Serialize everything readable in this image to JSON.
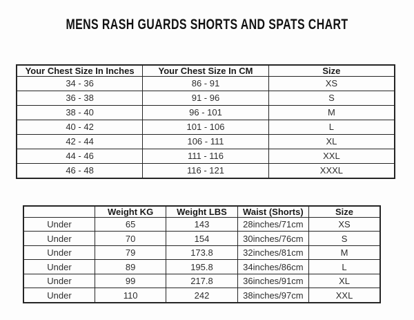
{
  "title": "MENS RASH GUARDS SHORTS AND SPATS CHART",
  "colors": {
    "background": "#fdfdfd",
    "border": "#242424",
    "header_text": "#1a1a1a",
    "cell_text": "#2e2e2e",
    "title_text": "#121212"
  },
  "chest_table": {
    "headers": [
      "Your Chest Size In Inches",
      "Your Chest Size In CM",
      "Size"
    ],
    "rows": [
      [
        "34 - 36",
        "86 - 91",
        "XS"
      ],
      [
        "36 - 38",
        "91 - 96",
        "S"
      ],
      [
        "38 - 40",
        "96 - 101",
        "M"
      ],
      [
        "40 - 42",
        "101 - 106",
        "L"
      ],
      [
        "42 - 44",
        "106 - 111",
        "XL"
      ],
      [
        "44 - 46",
        "111 - 116",
        "XXL"
      ],
      [
        "46 - 48",
        "116 - 121",
        "XXXL"
      ]
    ]
  },
  "weight_table": {
    "headers": [
      "",
      "Weight KG",
      "Weight LBS",
      "Waist (Shorts)",
      "Size"
    ],
    "rows": [
      [
        "Under",
        "65",
        "143",
        "28inches/71cm",
        "XS"
      ],
      [
        "Under",
        "70",
        "154",
        "30inches/76cm",
        "S"
      ],
      [
        "Under",
        "79",
        "173.8",
        "32inches/81cm",
        "M"
      ],
      [
        "Under",
        "89",
        "195.8",
        "34inches/86cm",
        "L"
      ],
      [
        "Under",
        "99",
        "217.8",
        "36inches/91cm",
        "XL"
      ],
      [
        "Under",
        "110",
        "242",
        "38inches/97cm",
        "XXL"
      ]
    ]
  }
}
